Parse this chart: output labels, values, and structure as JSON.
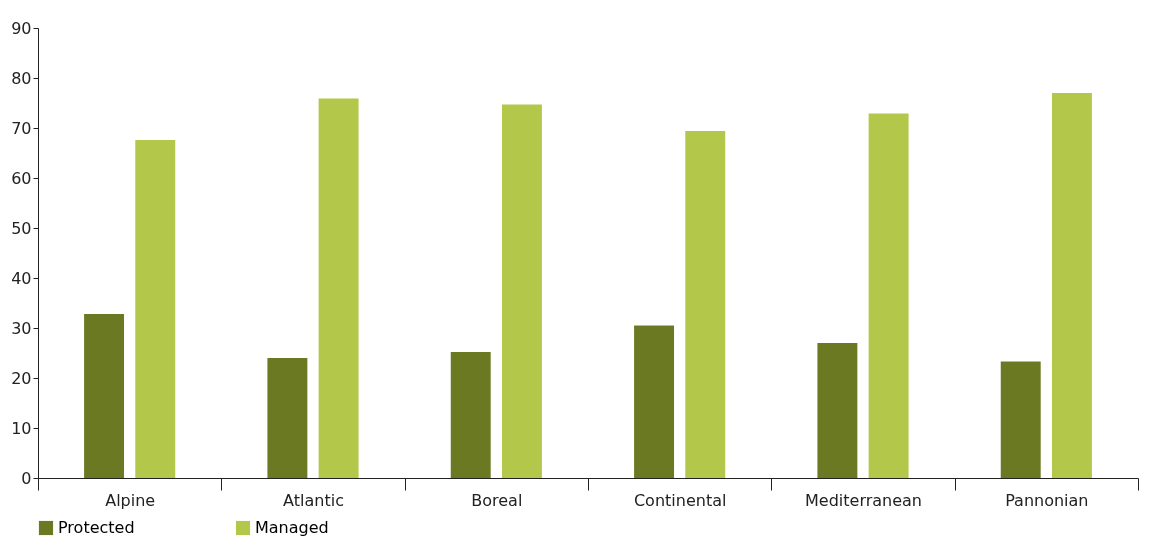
{
  "chart_data": {
    "type": "bar",
    "categories": [
      "Alpine",
      "Atlantic",
      "Boreal",
      "Continental",
      "Mediterranean",
      "Pannonian"
    ],
    "series": [
      {
        "name": "Protected",
        "color": "#6b7a22",
        "values": [
          32.8,
          24,
          25.2,
          30.5,
          27,
          23.3
        ]
      },
      {
        "name": "Managed",
        "color": "#b3c84a",
        "values": [
          67.6,
          75.9,
          74.7,
          69.4,
          72.9,
          77
        ]
      }
    ],
    "ylim": [
      0,
      90
    ],
    "yticks": [
      0,
      10,
      20,
      30,
      40,
      50,
      60,
      70,
      80,
      90
    ],
    "grid": false,
    "legend": "bottom left"
  }
}
